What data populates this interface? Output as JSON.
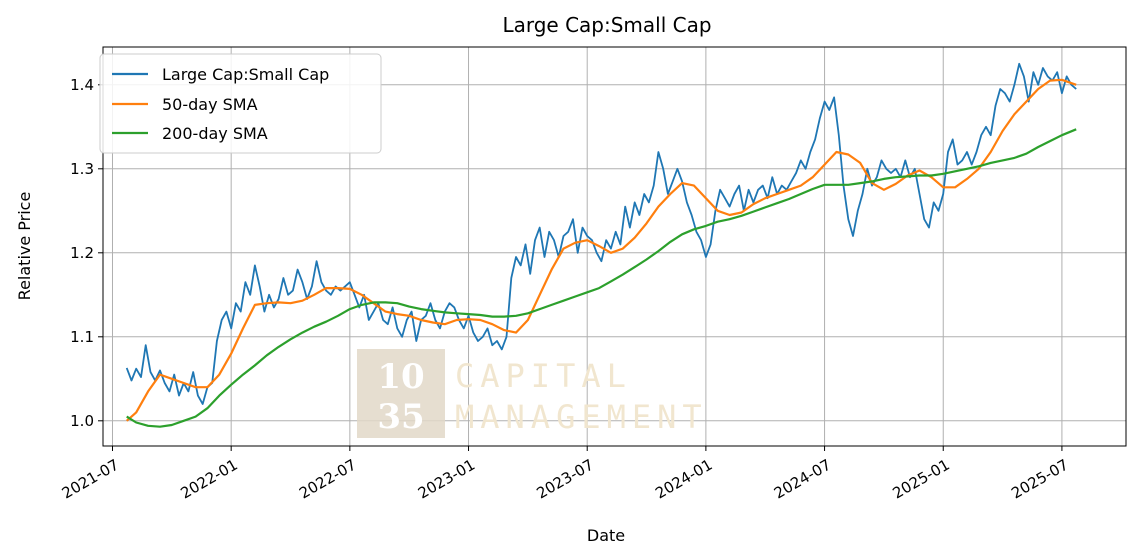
{
  "chart_data": {
    "type": "line",
    "title": "Large Cap:Small Cap",
    "xlabel": "Date",
    "ylabel": "Relative Price",
    "xlim": [
      2021.46,
      2025.77
    ],
    "ylim": [
      0.97,
      1.445
    ],
    "grid": true,
    "legend_position": "top-left",
    "x_ticks": [
      {
        "value": 2021.5,
        "label": "2021-07"
      },
      {
        "value": 2022.0,
        "label": "2022-01"
      },
      {
        "value": 2022.5,
        "label": "2022-07"
      },
      {
        "value": 2023.0,
        "label": "2023-01"
      },
      {
        "value": 2023.5,
        "label": "2023-07"
      },
      {
        "value": 2024.0,
        "label": "2024-01"
      },
      {
        "value": 2024.5,
        "label": "2024-07"
      },
      {
        "value": 2025.0,
        "label": "2025-01"
      },
      {
        "value": 2025.5,
        "label": "2025-07"
      }
    ],
    "y_ticks": [
      {
        "value": 1.0,
        "label": "1.0"
      },
      {
        "value": 1.1,
        "label": "1.1"
      },
      {
        "value": 1.2,
        "label": "1.2"
      },
      {
        "value": 1.3,
        "label": "1.3"
      },
      {
        "value": 1.4,
        "label": "1.4"
      }
    ],
    "series": [
      {
        "name": "Large Cap:Small Cap",
        "color": "#1f77b4",
        "x": [
          2021.56,
          2021.58,
          2021.6,
          2021.62,
          2021.64,
          2021.66,
          2021.68,
          2021.7,
          2021.72,
          2021.74,
          2021.76,
          2021.78,
          2021.8,
          2021.82,
          2021.84,
          2021.86,
          2021.88,
          2021.9,
          2021.92,
          2021.94,
          2021.96,
          2021.98,
          2022.0,
          2022.02,
          2022.04,
          2022.06,
          2022.08,
          2022.1,
          2022.12,
          2022.14,
          2022.16,
          2022.18,
          2022.2,
          2022.22,
          2022.24,
          2022.26,
          2022.28,
          2022.3,
          2022.32,
          2022.34,
          2022.36,
          2022.38,
          2022.4,
          2022.42,
          2022.44,
          2022.46,
          2022.48,
          2022.5,
          2022.52,
          2022.54,
          2022.56,
          2022.58,
          2022.6,
          2022.62,
          2022.64,
          2022.66,
          2022.68,
          2022.7,
          2022.72,
          2022.74,
          2022.76,
          2022.78,
          2022.8,
          2022.82,
          2022.84,
          2022.86,
          2022.88,
          2022.9,
          2022.92,
          2022.94,
          2022.96,
          2022.98,
          2023.0,
          2023.02,
          2023.04,
          2023.06,
          2023.08,
          2023.1,
          2023.12,
          2023.14,
          2023.16,
          2023.18,
          2023.2,
          2023.22,
          2023.24,
          2023.26,
          2023.28,
          2023.3,
          2023.32,
          2023.34,
          2023.36,
          2023.38,
          2023.4,
          2023.42,
          2023.44,
          2023.46,
          2023.48,
          2023.5,
          2023.52,
          2023.54,
          2023.56,
          2023.58,
          2023.6,
          2023.62,
          2023.64,
          2023.66,
          2023.68,
          2023.7,
          2023.72,
          2023.74,
          2023.76,
          2023.78,
          2023.8,
          2023.82,
          2023.84,
          2023.86,
          2023.88,
          2023.9,
          2023.92,
          2023.94,
          2023.96,
          2023.98,
          2024.0,
          2024.02,
          2024.04,
          2024.06,
          2024.08,
          2024.1,
          2024.12,
          2024.14,
          2024.16,
          2024.18,
          2024.2,
          2024.22,
          2024.24,
          2024.26,
          2024.28,
          2024.3,
          2024.32,
          2024.34,
          2024.36,
          2024.38,
          2024.4,
          2024.42,
          2024.44,
          2024.46,
          2024.48,
          2024.5,
          2024.52,
          2024.54,
          2024.56,
          2024.58,
          2024.6,
          2024.62,
          2024.64,
          2024.66,
          2024.68,
          2024.7,
          2024.72,
          2024.74,
          2024.76,
          2024.78,
          2024.8,
          2024.82,
          2024.84,
          2024.86,
          2024.88,
          2024.9,
          2024.92,
          2024.94,
          2024.96,
          2024.98,
          2025.0,
          2025.02,
          2025.04,
          2025.06,
          2025.08,
          2025.1,
          2025.12,
          2025.14,
          2025.16,
          2025.18,
          2025.2,
          2025.22,
          2025.24,
          2025.26,
          2025.28,
          2025.3,
          2025.32,
          2025.34,
          2025.36,
          2025.38,
          2025.4,
          2025.42,
          2025.44,
          2025.46,
          2025.48,
          2025.5,
          2025.52,
          2025.54,
          2025.56
        ],
        "values": [
          1.063,
          1.048,
          1.062,
          1.052,
          1.09,
          1.058,
          1.048,
          1.06,
          1.045,
          1.035,
          1.055,
          1.03,
          1.045,
          1.035,
          1.058,
          1.03,
          1.02,
          1.04,
          1.045,
          1.095,
          1.12,
          1.13,
          1.11,
          1.14,
          1.13,
          1.165,
          1.15,
          1.185,
          1.16,
          1.13,
          1.15,
          1.135,
          1.145,
          1.17,
          1.15,
          1.155,
          1.18,
          1.165,
          1.145,
          1.16,
          1.19,
          1.165,
          1.155,
          1.15,
          1.16,
          1.155,
          1.16,
          1.165,
          1.15,
          1.135,
          1.15,
          1.12,
          1.13,
          1.14,
          1.12,
          1.115,
          1.135,
          1.11,
          1.1,
          1.12,
          1.13,
          1.095,
          1.12,
          1.125,
          1.14,
          1.12,
          1.11,
          1.13,
          1.14,
          1.135,
          1.12,
          1.11,
          1.125,
          1.105,
          1.095,
          1.1,
          1.11,
          1.09,
          1.095,
          1.085,
          1.1,
          1.17,
          1.195,
          1.185,
          1.21,
          1.175,
          1.215,
          1.23,
          1.195,
          1.225,
          1.215,
          1.195,
          1.22,
          1.225,
          1.24,
          1.2,
          1.23,
          1.22,
          1.215,
          1.2,
          1.19,
          1.215,
          1.205,
          1.225,
          1.21,
          1.255,
          1.23,
          1.26,
          1.245,
          1.27,
          1.26,
          1.28,
          1.32,
          1.3,
          1.27,
          1.285,
          1.3,
          1.285,
          1.26,
          1.245,
          1.225,
          1.215,
          1.195,
          1.21,
          1.25,
          1.275,
          1.265,
          1.255,
          1.27,
          1.28,
          1.25,
          1.275,
          1.26,
          1.275,
          1.28,
          1.265,
          1.29,
          1.27,
          1.28,
          1.275,
          1.285,
          1.295,
          1.31,
          1.3,
          1.32,
          1.335,
          1.36,
          1.38,
          1.37,
          1.385,
          1.34,
          1.28,
          1.24,
          1.22,
          1.25,
          1.27,
          1.3,
          1.28,
          1.29,
          1.31,
          1.3,
          1.295,
          1.3,
          1.29,
          1.31,
          1.29,
          1.3,
          1.27,
          1.24,
          1.23,
          1.26,
          1.25,
          1.27,
          1.32,
          1.335,
          1.305,
          1.31,
          1.32,
          1.305,
          1.32,
          1.34,
          1.35,
          1.34,
          1.375,
          1.395,
          1.39,
          1.38,
          1.4,
          1.425,
          1.41,
          1.38,
          1.415,
          1.4,
          1.42,
          1.41,
          1.405,
          1.415,
          1.39,
          1.41,
          1.4,
          1.395
        ]
      },
      {
        "name": "50-day SMA",
        "color": "#ff7f0e",
        "x": [
          2021.56,
          2021.6,
          2021.65,
          2021.7,
          2021.75,
          2021.8,
          2021.85,
          2021.9,
          2021.95,
          2022.0,
          2022.05,
          2022.1,
          2022.15,
          2022.2,
          2022.25,
          2022.3,
          2022.35,
          2022.4,
          2022.45,
          2022.5,
          2022.55,
          2022.6,
          2022.65,
          2022.7,
          2022.75,
          2022.8,
          2022.85,
          2022.9,
          2022.95,
          2023.0,
          2023.05,
          2023.1,
          2023.15,
          2023.2,
          2023.25,
          2023.3,
          2023.35,
          2023.4,
          2023.45,
          2023.5,
          2023.55,
          2023.6,
          2023.65,
          2023.7,
          2023.75,
          2023.8,
          2023.85,
          2023.9,
          2023.95,
          2024.0,
          2024.05,
          2024.1,
          2024.15,
          2024.2,
          2024.25,
          2024.3,
          2024.35,
          2024.4,
          2024.45,
          2024.5,
          2024.55,
          2024.6,
          2024.65,
          2024.7,
          2024.75,
          2024.8,
          2024.85,
          2024.9,
          2024.95,
          2025.0,
          2025.05,
          2025.1,
          2025.15,
          2025.2,
          2025.25,
          2025.3,
          2025.35,
          2025.4,
          2025.45,
          2025.5,
          2025.56
        ],
        "values": [
          1.0,
          1.01,
          1.035,
          1.055,
          1.05,
          1.045,
          1.04,
          1.04,
          1.055,
          1.08,
          1.11,
          1.138,
          1.14,
          1.141,
          1.14,
          1.143,
          1.15,
          1.158,
          1.158,
          1.157,
          1.15,
          1.14,
          1.13,
          1.127,
          1.125,
          1.12,
          1.117,
          1.115,
          1.12,
          1.121,
          1.12,
          1.115,
          1.108,
          1.105,
          1.12,
          1.15,
          1.18,
          1.205,
          1.212,
          1.215,
          1.208,
          1.2,
          1.205,
          1.218,
          1.235,
          1.255,
          1.27,
          1.283,
          1.28,
          1.265,
          1.25,
          1.245,
          1.248,
          1.258,
          1.265,
          1.27,
          1.275,
          1.28,
          1.29,
          1.305,
          1.32,
          1.317,
          1.307,
          1.283,
          1.275,
          1.282,
          1.292,
          1.298,
          1.29,
          1.278,
          1.278,
          1.288,
          1.3,
          1.32,
          1.345,
          1.365,
          1.38,
          1.395,
          1.405,
          1.406,
          1.4
        ]
      },
      {
        "name": "200-day SMA",
        "color": "#2ca02c",
        "x": [
          2021.56,
          2021.6,
          2021.65,
          2021.7,
          2021.75,
          2021.8,
          2021.85,
          2021.9,
          2021.95,
          2022.0,
          2022.05,
          2022.1,
          2022.15,
          2022.2,
          2022.25,
          2022.3,
          2022.35,
          2022.4,
          2022.45,
          2022.5,
          2022.55,
          2022.6,
          2022.65,
          2022.7,
          2022.75,
          2022.8,
          2022.85,
          2022.9,
          2022.95,
          2023.0,
          2023.05,
          2023.1,
          2023.15,
          2023.2,
          2023.25,
          2023.3,
          2023.35,
          2023.4,
          2023.45,
          2023.5,
          2023.55,
          2023.6,
          2023.65,
          2023.7,
          2023.75,
          2023.8,
          2023.85,
          2023.9,
          2023.95,
          2024.0,
          2024.05,
          2024.1,
          2024.15,
          2024.2,
          2024.25,
          2024.3,
          2024.35,
          2024.4,
          2024.45,
          2024.5,
          2024.55,
          2024.6,
          2024.65,
          2024.7,
          2024.75,
          2024.8,
          2024.85,
          2024.9,
          2024.95,
          2025.0,
          2025.05,
          2025.1,
          2025.15,
          2025.2,
          2025.25,
          2025.3,
          2025.35,
          2025.4,
          2025.45,
          2025.5,
          2025.56
        ],
        "values": [
          1.005,
          0.998,
          0.994,
          0.993,
          0.995,
          1.0,
          1.005,
          1.015,
          1.03,
          1.043,
          1.055,
          1.066,
          1.078,
          1.088,
          1.097,
          1.105,
          1.112,
          1.118,
          1.125,
          1.133,
          1.138,
          1.141,
          1.141,
          1.14,
          1.136,
          1.133,
          1.131,
          1.129,
          1.128,
          1.127,
          1.126,
          1.124,
          1.124,
          1.125,
          1.128,
          1.133,
          1.138,
          1.143,
          1.148,
          1.153,
          1.158,
          1.166,
          1.174,
          1.183,
          1.192,
          1.202,
          1.213,
          1.222,
          1.228,
          1.232,
          1.237,
          1.24,
          1.244,
          1.249,
          1.254,
          1.259,
          1.264,
          1.27,
          1.276,
          1.281,
          1.281,
          1.281,
          1.283,
          1.285,
          1.288,
          1.29,
          1.291,
          1.292,
          1.292,
          1.294,
          1.297,
          1.3,
          1.303,
          1.307,
          1.31,
          1.313,
          1.318,
          1.326,
          1.333,
          1.34,
          1.347
        ]
      }
    ]
  },
  "watermark": {
    "number_top": "10",
    "number_bottom": "35",
    "line1": "CAPITAL",
    "line2": "MANAGEMENT"
  }
}
